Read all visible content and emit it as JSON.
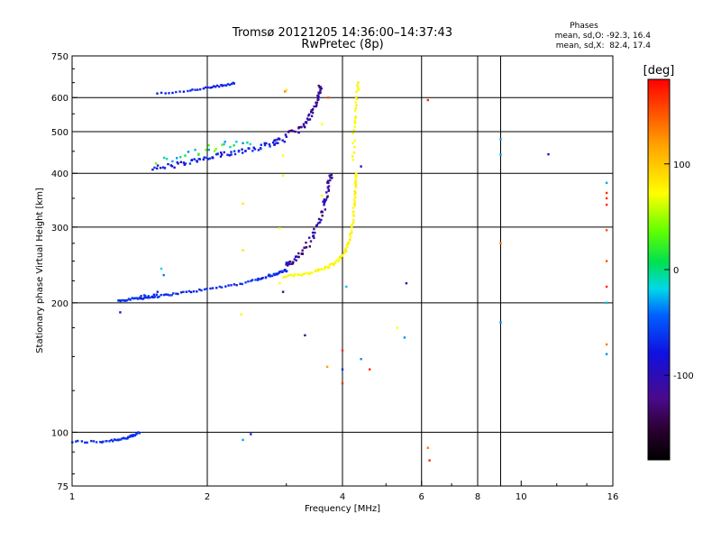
{
  "chart_data": {
    "type": "scatter",
    "title": "Tromsø 20121205 14:36:00–14:37:43",
    "subtitle": "RwPretec (8p)",
    "xlabel": "Frequency [MHz]",
    "ylabel": "Stationary phase Virtual Height [km]",
    "x_scale": "log",
    "y_scale": "log",
    "xlim": [
      1,
      16
    ],
    "ylim": [
      75,
      750
    ],
    "x_ticks": [
      1,
      2,
      4,
      6,
      8,
      10,
      16
    ],
    "x_tick_labels": [
      "1",
      "2",
      "4",
      "6",
      "8",
      "10",
      "16"
    ],
    "y_ticks": [
      75,
      100,
      200,
      300,
      400,
      500,
      600,
      750
    ],
    "y_tick_labels": [
      "75",
      "100",
      "200",
      "300",
      "400",
      "500",
      "600",
      "750"
    ],
    "x_gridlines": [
      2,
      4,
      6,
      8,
      9,
      16
    ],
    "y_gridlines": [
      100,
      200,
      300,
      400,
      500,
      600
    ],
    "grid": true,
    "phases": {
      "heading": "Phases",
      "o_line": "mean, sd,O: -92.3, 16.4",
      "x_line": "mean, sd,X:  82.4, 17.4"
    },
    "colorbar": {
      "label": "[deg]",
      "range": [
        -180,
        180
      ],
      "ticks": [
        100,
        0,
        -100
      ],
      "tick_labels": [
        "100",
        "0",
        "-100"
      ],
      "colormap": "rainbow: black(-180) → purple → blue(-100) → cyan → green(0) → yellow(100) → orange → red(180)"
    },
    "series": [
      {
        "curve": [
          [
            1.0,
            95
          ],
          [
            1.15,
            95
          ],
          [
            1.25,
            96
          ],
          [
            1.32,
            97
          ],
          [
            1.37,
            98
          ],
          [
            1.41,
            100
          ]
        ],
        "count": 45,
        "phase": [
          -95,
          -80
        ],
        "jitter": 0.008
      },
      {
        "curve": [
          [
            1.27,
            202
          ],
          [
            1.35,
            204
          ],
          [
            1.5,
            206
          ],
          [
            1.7,
            210
          ],
          [
            2.0,
            215
          ],
          [
            2.4,
            222
          ],
          [
            2.8,
            232
          ],
          [
            3.0,
            238
          ]
        ],
        "count": 85,
        "phase": [
          -100,
          -80
        ],
        "jitter": 0.006
      },
      {
        "curve": [
          [
            2.6,
            228
          ],
          [
            2.85,
            234
          ],
          [
            3.0,
            238
          ]
        ],
        "count": 12,
        "phase": [
          -100,
          -80
        ],
        "jitter": 0.01
      },
      {
        "curve": [
          [
            1.38,
            205
          ],
          [
            1.45,
            207
          ],
          [
            1.55,
            208
          ]
        ],
        "count": 10,
        "phase": [
          -95,
          -80
        ],
        "jitter": 0.01
      },
      {
        "curve": [
          [
            2.95,
            230
          ],
          [
            3.2,
            232
          ],
          [
            3.5,
            237
          ],
          [
            3.7,
            242
          ],
          [
            3.9,
            250
          ],
          [
            4.05,
            262
          ],
          [
            4.15,
            280
          ],
          [
            4.22,
            310
          ],
          [
            4.26,
            350
          ],
          [
            4.28,
            380
          ],
          [
            4.3,
            400
          ]
        ],
        "count": 90,
        "phase": [
          95,
          110
        ],
        "jitter": 0.008
      },
      {
        "curve": [
          [
            4.22,
            430
          ],
          [
            4.25,
            500
          ],
          [
            4.28,
            560
          ],
          [
            4.32,
            620
          ],
          [
            4.35,
            650
          ]
        ],
        "count": 28,
        "phase": [
          95,
          112
        ],
        "jitter": 0.012
      },
      {
        "curve": [
          [
            3.0,
            245
          ],
          [
            3.1,
            250
          ],
          [
            3.25,
            260
          ],
          [
            3.4,
            280
          ],
          [
            3.55,
            310
          ],
          [
            3.65,
            340
          ],
          [
            3.72,
            370
          ],
          [
            3.78,
            400
          ]
        ],
        "count": 70,
        "phase": [
          -140,
          -100
        ],
        "jitter": 0.02
      },
      {
        "curve": [
          [
            1.5,
            410
          ],
          [
            1.7,
            418
          ],
          [
            1.9,
            428
          ],
          [
            2.1,
            438
          ],
          [
            2.3,
            448
          ],
          [
            2.55,
            458
          ],
          [
            2.8,
            470
          ],
          [
            2.95,
            480
          ]
        ],
        "count": 80,
        "phase": [
          -110,
          -80
        ],
        "jitter": 0.018
      },
      {
        "curve": [
          [
            1.55,
            430
          ],
          [
            1.8,
            440
          ],
          [
            2.0,
            455
          ],
          [
            2.2,
            465
          ],
          [
            2.5,
            475
          ]
        ],
        "count": 25,
        "phase": [
          -60,
          40
        ],
        "jitter": 0.025
      },
      {
        "curve": [
          [
            3.0,
            490
          ],
          [
            3.2,
            505
          ],
          [
            3.35,
            530
          ],
          [
            3.48,
            570
          ],
          [
            3.55,
            610
          ],
          [
            3.58,
            640
          ]
        ],
        "count": 55,
        "phase": [
          -140,
          -100
        ],
        "jitter": 0.018
      },
      {
        "curve": [
          [
            1.55,
            612
          ],
          [
            1.8,
            622
          ],
          [
            2.0,
            632
          ],
          [
            2.15,
            640
          ],
          [
            2.3,
            648
          ]
        ],
        "count": 32,
        "phase": [
          -100,
          -85
        ],
        "jitter": 0.005
      }
    ],
    "isolated_points": [
      [
        1.28,
        190,
        -110
      ],
      [
        1.55,
        212,
        -90
      ],
      [
        1.58,
        240,
        -20
      ],
      [
        1.6,
        232,
        -60
      ],
      [
        2.4,
        265,
        110
      ],
      [
        2.38,
        188,
        105
      ],
      [
        2.4,
        340,
        110
      ],
      [
        2.4,
        96,
        -40
      ],
      [
        2.5,
        99,
        -95
      ],
      [
        2.9,
        222,
        95
      ],
      [
        2.9,
        298,
        95
      ],
      [
        2.95,
        212,
        -130
      ],
      [
        2.95,
        395,
        95
      ],
      [
        2.98,
        620,
        150
      ],
      [
        3.0,
        625,
        110
      ],
      [
        2.95,
        440,
        100
      ],
      [
        3.3,
        168,
        -130
      ],
      [
        3.6,
        520,
        100
      ],
      [
        3.6,
        355,
        100
      ],
      [
        3.7,
        142,
        140
      ],
      [
        3.72,
        600,
        160
      ],
      [
        4.0,
        155,
        170
      ],
      [
        4.0,
        130,
        170
      ],
      [
        4.08,
        218,
        -30
      ],
      [
        4.0,
        140,
        -90
      ],
      [
        4.4,
        415,
        -100
      ],
      [
        4.4,
        148,
        -50
      ],
      [
        4.6,
        140,
        170
      ],
      [
        5.3,
        175,
        100
      ],
      [
        5.5,
        166,
        -50
      ],
      [
        5.55,
        222,
        -110
      ],
      [
        6.2,
        592,
        170
      ],
      [
        6.2,
        92,
        150
      ],
      [
        6.25,
        86,
        170
      ],
      [
        9.0,
        480,
        -40
      ],
      [
        9.0,
        442,
        -40
      ],
      [
        9.0,
        180,
        -50
      ],
      [
        9.0,
        275,
        150
      ],
      [
        11.5,
        443,
        -100
      ],
      [
        15.5,
        380,
        -40
      ],
      [
        15.5,
        360,
        170
      ],
      [
        15.5,
        350,
        170
      ],
      [
        15.5,
        338,
        170
      ],
      [
        15.5,
        295,
        160
      ],
      [
        15.5,
        250,
        160
      ],
      [
        15.5,
        218,
        170
      ],
      [
        15.5,
        200,
        -30
      ],
      [
        15.5,
        160,
        150
      ],
      [
        15.5,
        152,
        -50
      ]
    ]
  }
}
